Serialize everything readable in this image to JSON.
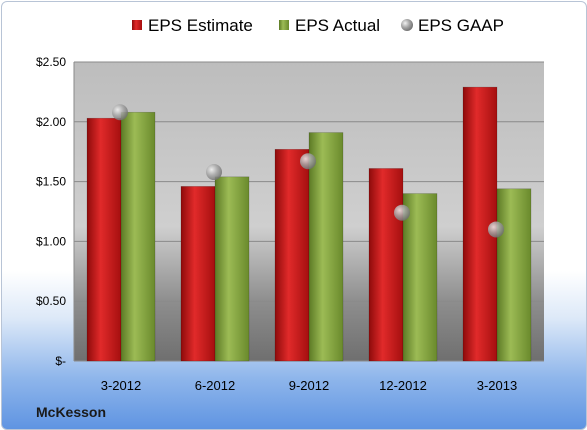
{
  "company": "McKesson",
  "chart_data": {
    "type": "bar",
    "categories": [
      "3-2012",
      "6-2012",
      "9-2012",
      "12-2012",
      "3-2013"
    ],
    "series": [
      {
        "name": "EPS Estimate",
        "type": "bar",
        "color": "#cc1111",
        "values": [
          2.03,
          1.46,
          1.77,
          1.61,
          2.29
        ]
      },
      {
        "name": "EPS Actual",
        "type": "bar",
        "color": "#7f9f3a",
        "values": [
          2.08,
          1.54,
          1.91,
          1.4,
          1.44
        ]
      },
      {
        "name": "EPS GAAP",
        "type": "scatter",
        "color": "#a0a0a0",
        "values": [
          2.08,
          1.58,
          1.67,
          1.24,
          1.1
        ]
      }
    ],
    "y_ticks": [
      {
        "value": 0,
        "label": "$-"
      },
      {
        "value": 0.5,
        "label": "$0.50"
      },
      {
        "value": 1.0,
        "label": "$1.00"
      },
      {
        "value": 1.5,
        "label": "$1.50"
      },
      {
        "value": 2.0,
        "label": "$2.00"
      },
      {
        "value": 2.5,
        "label": "$2.50"
      }
    ],
    "ylim": [
      0,
      2.5
    ],
    "grid": true,
    "legend_position": "top"
  }
}
